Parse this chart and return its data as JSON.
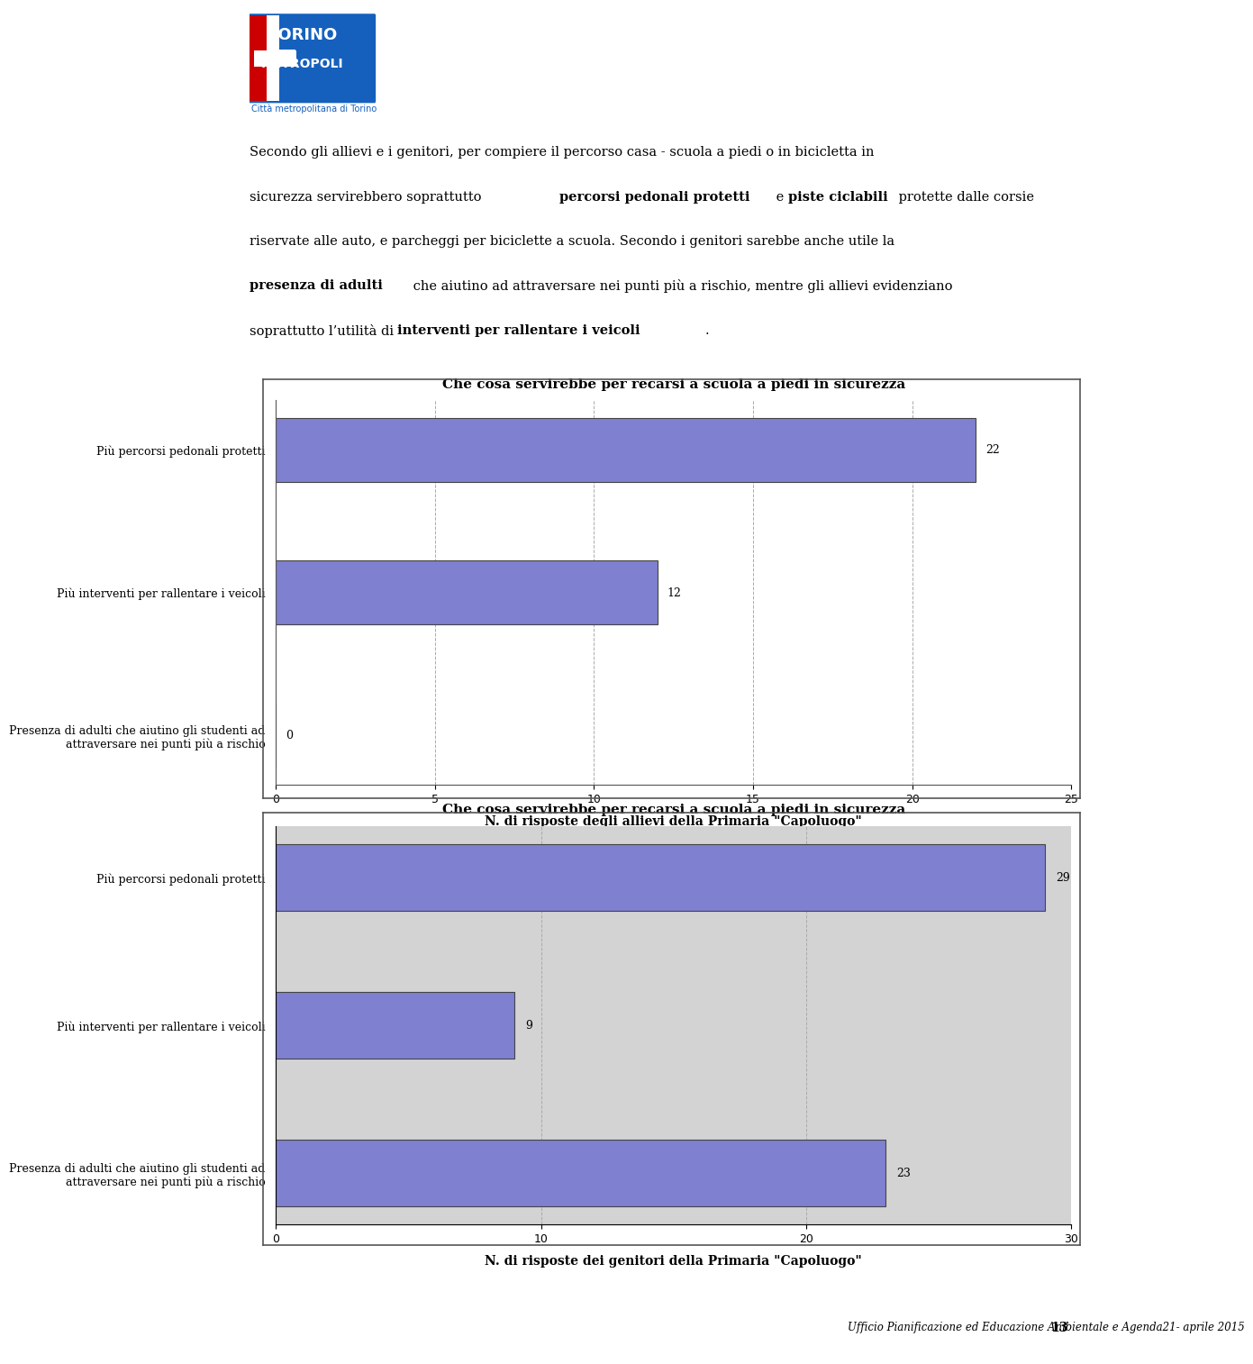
{
  "page_bg": "#ffffff",
  "logo_text1": "TORINO",
  "logo_text2": "METROPOLI",
  "logo_subtitle": "Città metropolitana di Torino",
  "body_text": "Secondo gli allievi e i genitori, per compiere il percorso casa - scuola a piedi o in bicicletta in sicurezza servirebbero soprattutto percorsi pedonali protetti e piste ciclabili protette dalle corsie riservate alle auto, e parcheggi per biciclette a scuola. Secondo i genitori sarebbe anche utile la presenza di adulti che aiutino ad attraversare nei punti più a rischio, mentre gli allievi evidenziano soprattutto l’utilità di interventi per rallentare i veicoli.",
  "chart1": {
    "title": "Che cosa servirebbe per recarsi a scuola a piedi in sicurezza",
    "categories": [
      "Presenza di adulti che aiutino gli studenti ad\nattraversare nei punti più a rischio",
      "Più interventi per rallentare i veicoli",
      "Più percorsi pedonali protetti"
    ],
    "values": [
      0,
      12,
      22
    ],
    "xlim": [
      0,
      25
    ],
    "xticks": [
      0,
      5,
      10,
      15,
      20,
      25
    ],
    "xlabel": "N. di risposte degli allievi della Primaria \"Capoluogo\"",
    "bar_color": "#8080d0",
    "bg_color": "#ffffff",
    "plot_bg": "#ffffff",
    "grid_color": "#aaaaaa"
  },
  "chart2": {
    "title": "Che cosa servirebbe per recarsi a scuola a piedi in sicurezza",
    "categories": [
      "Presenza di adulti che aiutino gli studenti ad\nattraversare nei punti più a rischio",
      "Più interventi per rallentare i veicoli",
      "Più percorsi pedonali protetti"
    ],
    "values": [
      23,
      9,
      29
    ],
    "xlim": [
      0,
      30
    ],
    "xticks": [
      0,
      10,
      20,
      30
    ],
    "xlabel": "N. di risposte dei genitori della Primaria \"Capoluogo\"",
    "bar_color": "#8080d0",
    "bg_color": "#d3d3d3",
    "plot_bg": "#d3d3d3",
    "grid_color": "#aaaaaa"
  },
  "footer_text": "Ufficio Pianificazione ed Educazione Ambientale e Agenda21- aprile 2015",
  "footer_page": "13"
}
